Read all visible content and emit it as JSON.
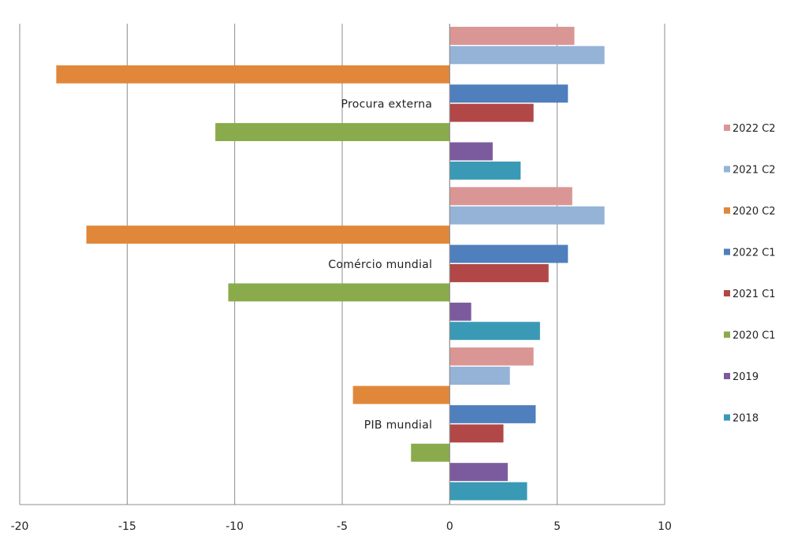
{
  "chart_data": {
    "type": "bar",
    "orientation": "horizontal",
    "categories": [
      "Procura externa",
      "Comércio mundial",
      "PIB mundial"
    ],
    "series": [
      {
        "name": "2022 C2",
        "color": "#d99694",
        "values": [
          5.8,
          5.7,
          3.9
        ]
      },
      {
        "name": "2021 C2",
        "color": "#95b3d7",
        "values": [
          7.2,
          7.2,
          2.8
        ]
      },
      {
        "name": "2020 C2",
        "color": "#e0873a",
        "values": [
          -18.3,
          -16.9,
          -4.5
        ]
      },
      {
        "name": "2022 C1",
        "color": "#4f7fbd",
        "values": [
          5.5,
          5.5,
          4.0
        ]
      },
      {
        "name": "2021 C1",
        "color": "#b14747",
        "values": [
          3.9,
          4.6,
          2.5
        ]
      },
      {
        "name": "2020 C1",
        "color": "#8aab4c",
        "values": [
          -10.9,
          -10.3,
          -1.8
        ]
      },
      {
        "name": "2019",
        "color": "#7b5b9d",
        "values": [
          2.0,
          1.0,
          2.7
        ]
      },
      {
        "name": "2018",
        "color": "#3a9ab5",
        "values": [
          3.3,
          4.2,
          3.6
        ]
      }
    ],
    "xlim": [
      -20,
      10
    ],
    "xticks": [
      "-20",
      "-15",
      "-10",
      "-5",
      "0",
      "5",
      "10"
    ],
    "grid": "vertical",
    "legend": "right",
    "title": "",
    "xlabel": "",
    "ylabel": ""
  }
}
